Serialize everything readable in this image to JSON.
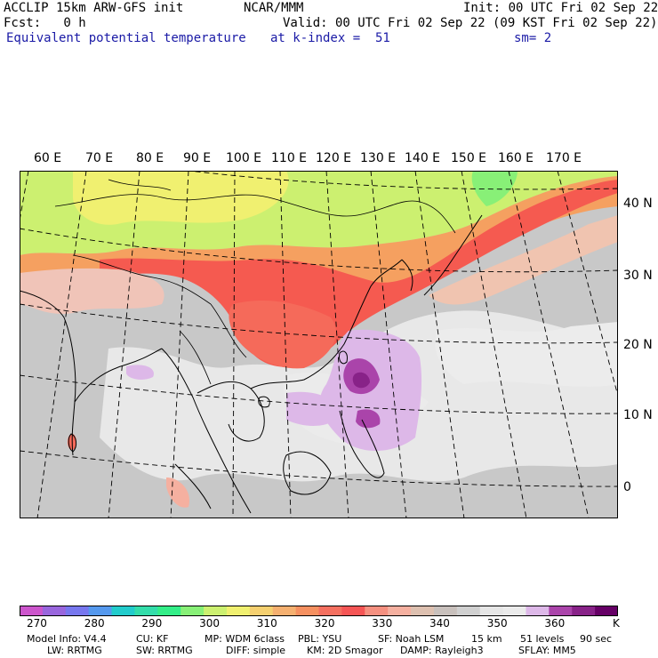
{
  "header": {
    "line1_left": "ACCLIP 15km ARW-GFS init",
    "line1_mid": "NCAR/MMM",
    "line1_right": "Init: 00 UTC Fri 02 Sep 22",
    "line2_left": "Fcst:   0 h",
    "line2_right": "Valid: 00 UTC Fri 02 Sep 22 (09 KST Fri 02 Sep 22)",
    "line3_field": "Equivalent potential temperature",
    "line3_level": "at k-index =  51",
    "line3_smooth": "sm= 2"
  },
  "lon_labels": [
    "60 E",
    "70 E",
    "80 E",
    "90 E",
    "100 E",
    "110 E",
    "120 E",
    "130 E",
    "140 E",
    "150 E",
    "160 E",
    "170 E"
  ],
  "lat_labels": [
    "40 N",
    "30 N",
    "20 N",
    "10 N",
    "0"
  ],
  "colorbar": {
    "colors": [
      "#cc55cc",
      "#9966dd",
      "#7777ee",
      "#5599ee",
      "#22cccc",
      "#33ddaa",
      "#33ee88",
      "#88f077",
      "#ccf070",
      "#f0f070",
      "#f5d070",
      "#f5b070",
      "#f59060",
      "#f57060",
      "#f55555",
      "#f59080",
      "#f5b0a0",
      "#ddc0b0",
      "#c8c0bc",
      "#d0d0d0",
      "#e6e6e6",
      "#ebebeb",
      "#ddb8e8",
      "#aa44aa",
      "#882288",
      "#660066"
    ],
    "tick_labels": [
      "270",
      "280",
      "290",
      "300",
      "310",
      "320",
      "330",
      "340",
      "350",
      "360"
    ],
    "unit": "K"
  },
  "footer": {
    "line1": [
      "Model Info: V4.4",
      "CU: KF",
      "MP: WDM 6class",
      "PBL: YSU",
      "SF: Noah LSM",
      "15 km",
      "51 levels",
      "90 sec"
    ],
    "line2": [
      "LW: RRTMG",
      "SW: RRTMG",
      "DIFF: simple",
      "KM: 2D Smagor",
      "DAMP: Rayleigh3",
      "SFLAY: MM5"
    ]
  }
}
